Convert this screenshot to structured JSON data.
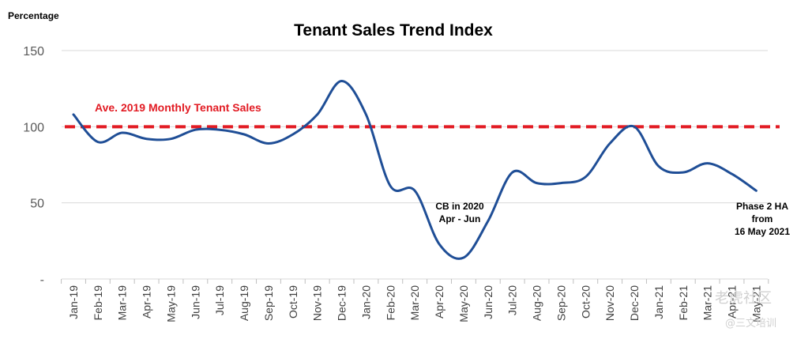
{
  "chart_data": {
    "type": "line",
    "title": "Tenant Sales Trend Index",
    "ylabel": "Percentage",
    "xlabel": "",
    "ylim": [
      0,
      150
    ],
    "yticks": [
      {
        "value": 0,
        "label": "-"
      },
      {
        "value": 50,
        "label": "50"
      },
      {
        "value": 100,
        "label": "100"
      },
      {
        "value": 150,
        "label": "150"
      }
    ],
    "grid": true,
    "categories": [
      "Jan-19",
      "Feb-19",
      "Mar-19",
      "Apr-19",
      "May-19",
      "Jun-19",
      "Jul-19",
      "Aug-19",
      "Sep-19",
      "Oct-19",
      "Nov-19",
      "Dec-19",
      "Jan-20",
      "Feb-20",
      "Mar-20",
      "Apr-20",
      "May-20",
      "Jun-20",
      "Jul-20",
      "Aug-20",
      "Sep-20",
      "Oct-20",
      "Nov-20",
      "Dec-20",
      "Jan-21",
      "Feb-21",
      "Mar-21",
      "Apr-21",
      "May-21"
    ],
    "series": [
      {
        "name": "Tenant Sales Trend Index",
        "color": "#1f4e96",
        "values": [
          108,
          90,
          96,
          92,
          92,
          98,
          98,
          95,
          89,
          95,
          108,
          130,
          108,
          61,
          58,
          23,
          14,
          38,
          70,
          63,
          63,
          67,
          89,
          100,
          74,
          70,
          76,
          69,
          58
        ]
      }
    ],
    "reference_line": {
      "value": 100,
      "label": "Ave. 2019 Monthly Tenant Sales",
      "color": "#e21b23"
    },
    "annotations": [
      {
        "lines": [
          "CB in 2020",
          "Apr - Jun"
        ]
      },
      {
        "lines": [
          "Phase 2 HA",
          "from",
          "16 May 2021"
        ]
      }
    ]
  },
  "watermark": {
    "line1": "老虎社区",
    "line2": "@三文培训"
  }
}
